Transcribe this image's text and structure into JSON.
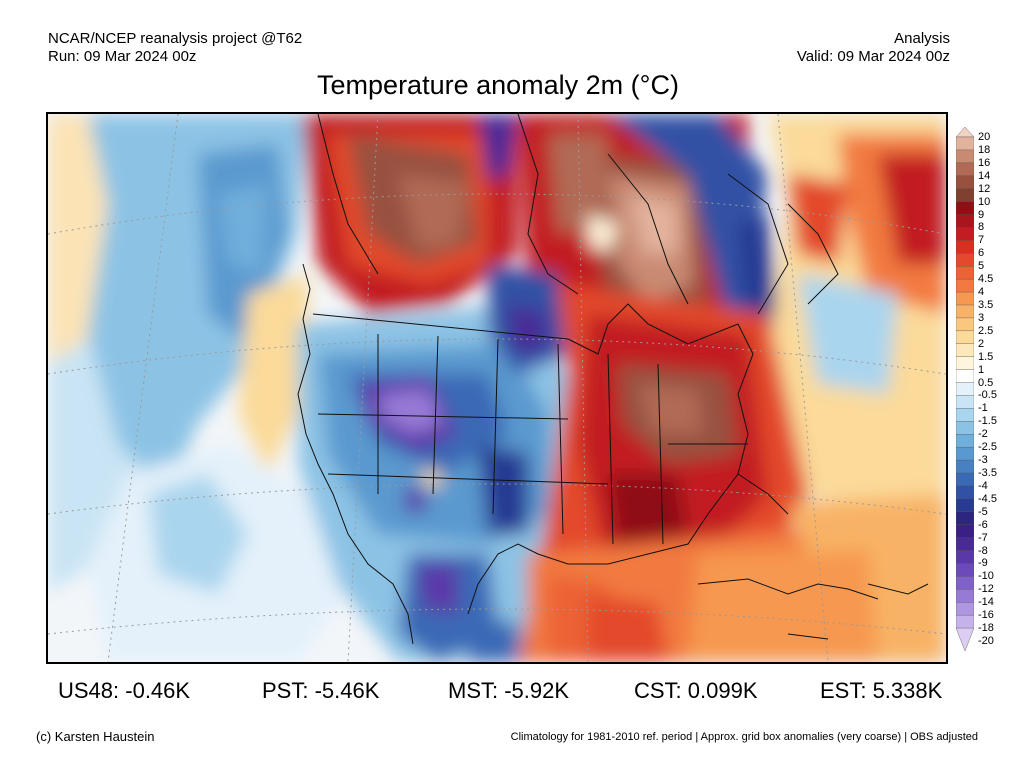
{
  "header": {
    "project": "NCAR/NCEP reanalysis project @T62",
    "run": "Run: 09 Mar 2024 00z",
    "kind": "Analysis",
    "valid": "Valid: 09 Mar 2024 00z"
  },
  "title": "Temperature anomaly 2m (°C)",
  "colorbar": {
    "labels": [
      "20",
      "18",
      "16",
      "14",
      "12",
      "10",
      "9",
      "8",
      "7",
      "6",
      "5",
      "4.5",
      "4",
      "3.5",
      "3",
      "2.5",
      "2",
      "1.5",
      "1",
      "0.5",
      "-0.5",
      "-1",
      "-1.5",
      "-2",
      "-2.5",
      "-3",
      "-3.5",
      "-4",
      "-4.5",
      "-5",
      "-6",
      "-7",
      "-8",
      "-9",
      "-10",
      "-12",
      "-14",
      "-16",
      "-18",
      "-20"
    ],
    "colors": [
      "#f2d2c2",
      "#e3b29d",
      "#c98a72",
      "#b06a55",
      "#98513f",
      "#80402f",
      "#8f0f15",
      "#a9151c",
      "#c21d22",
      "#d7301f",
      "#e34a2c",
      "#ec6235",
      "#f27a40",
      "#f69850",
      "#f8b265",
      "#fac77f",
      "#fbda9a",
      "#fde8bb",
      "#fff4dc",
      "#ffffff",
      "#e4f1fa",
      "#c9e4f4",
      "#aad5ee",
      "#8cc3e5",
      "#70afdb",
      "#5a99cf",
      "#4881c2",
      "#3a69b5",
      "#3051a5",
      "#283b93",
      "#2c2681",
      "#3a1f86",
      "#4a2a96",
      "#5b38a8",
      "#6c4ab9",
      "#8060c9",
      "#977ad6",
      "#ae96e0",
      "#c5b2ea",
      "#dccdf2"
    ]
  },
  "stats": [
    {
      "label": "US48: -0.46K"
    },
    {
      "label": "PST: -5.46K"
    },
    {
      "label": "MST: -5.92K"
    },
    {
      "label": "CST: 0.099K"
    },
    {
      "label": "EST: 5.338K"
    }
  ],
  "footer": {
    "credit": "(c) Karsten Haustein",
    "note": "Climatology for 1981-2010 ref. period | Approx. grid box anomalies (very coarse) | OBS adjusted"
  }
}
